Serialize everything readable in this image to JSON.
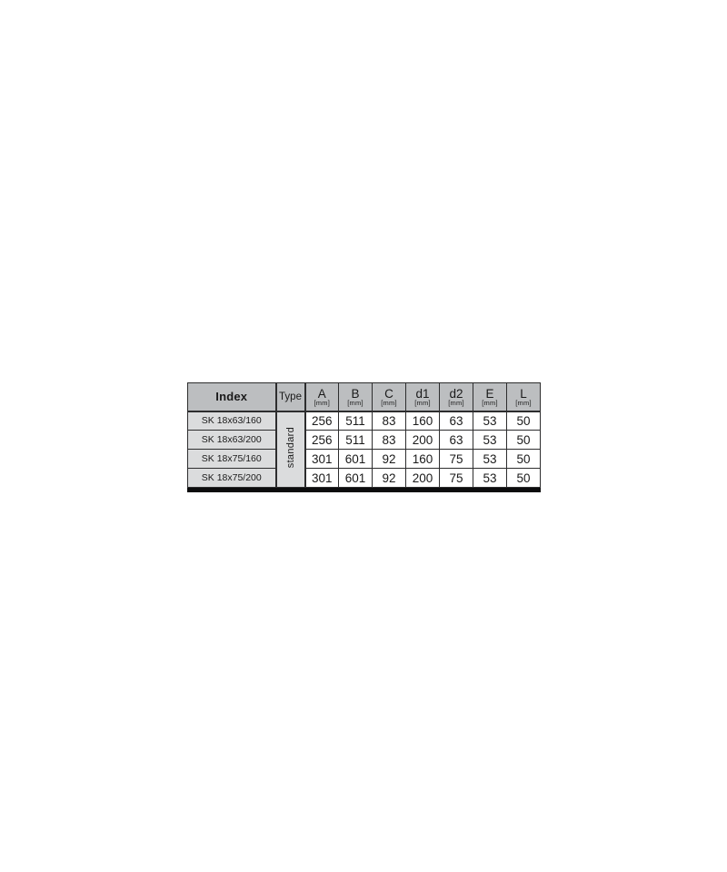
{
  "table": {
    "header": {
      "index_label": "Index",
      "type_label": "Type",
      "unit": "[mm]",
      "dim_columns": [
        "A",
        "B",
        "C",
        "d1",
        "d2",
        "E",
        "L"
      ]
    },
    "type_group_label": "standard",
    "rows": [
      {
        "index": "SK 18x63/160",
        "values": [
          256,
          511,
          83,
          160,
          63,
          53,
          50
        ]
      },
      {
        "index": "SK 18x63/200",
        "values": [
          256,
          511,
          83,
          200,
          63,
          53,
          50
        ]
      },
      {
        "index": "SK 18x75/160",
        "values": [
          301,
          601,
          92,
          160,
          75,
          53,
          50
        ]
      },
      {
        "index": "SK 18x75/200",
        "values": [
          301,
          601,
          92,
          200,
          75,
          53,
          50
        ]
      }
    ],
    "colors": {
      "header_bg": "#bcbec0",
      "group_bg": "#dbdcdd",
      "cell_bg": "#ffffff",
      "border": "#2d2d2e",
      "heavy": "#0c0c0d",
      "text": "#1a1a1a"
    }
  }
}
